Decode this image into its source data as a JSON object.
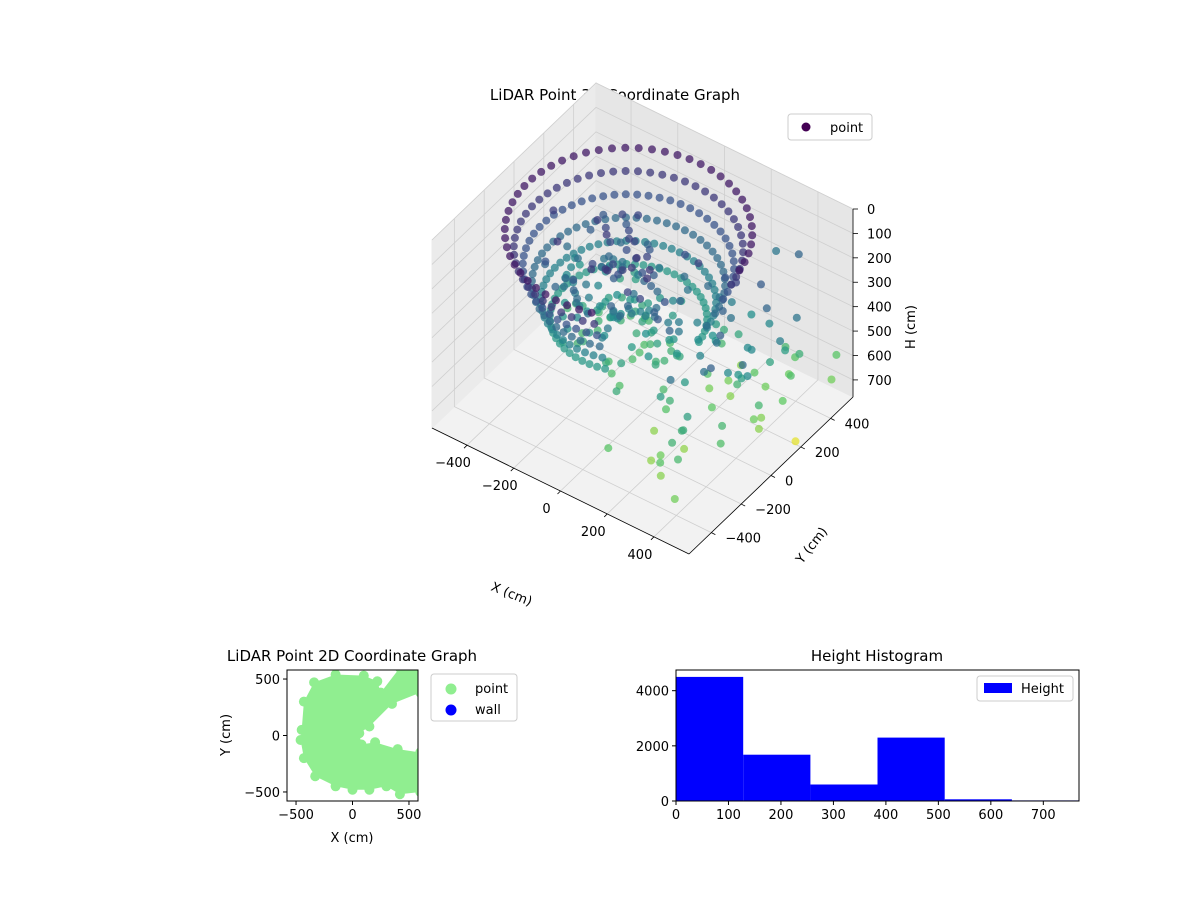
{
  "chart_data": [
    {
      "type": "scatter",
      "projection": "3d",
      "title": "LiDAR Point 3D Coordinate Graph",
      "xlabel": "X (cm)",
      "ylabel": "Y (cm)",
      "zlabel": "H (cm)",
      "x_ticks": [
        -400,
        -200,
        0,
        200,
        400
      ],
      "y_ticks": [
        -400,
        -200,
        0,
        200,
        400
      ],
      "z_ticks": [
        0,
        100,
        200,
        300,
        400,
        500,
        600,
        700
      ],
      "xlim": [
        -550,
        550
      ],
      "ylim": [
        -550,
        550
      ],
      "zlim": [
        0,
        770
      ],
      "z_inverted": true,
      "colormap": "viridis",
      "legend": {
        "entries": [
          "point"
        ],
        "position": "upper-right"
      },
      "grid": true,
      "series": [
        {
          "name": "point",
          "note_points": [
            {
              "x": 530,
              "y": 470,
              "h": 560
            },
            {
              "x": 560,
              "y": 390,
              "h": 600
            },
            {
              "x": 480,
              "y": 300,
              "h": 480
            },
            {
              "x": 540,
              "y": 180,
              "h": 740
            },
            {
              "x": 420,
              "y": -420,
              "h": 520
            },
            {
              "x": 470,
              "y": -520,
              "h": 600
            },
            {
              "x": 350,
              "y": -430,
              "h": 560
            },
            {
              "x": 260,
              "y": -350,
              "h": 640
            },
            {
              "x": 160,
              "y": -480,
              "h": 560
            },
            {
              "x": 80,
              "y": -300,
              "h": 470
            },
            {
              "x": 300,
              "y": 260,
              "h": 380
            },
            {
              "x": 200,
              "y": 180,
              "h": 420
            },
            {
              "x": 120,
              "y": -100,
              "h": 460
            },
            {
              "x": 380,
              "y": 40,
              "h": 500
            },
            {
              "x": 450,
              "y": 150,
              "h": 440
            },
            {
              "x": 240,
              "y": 520,
              "h": 300
            },
            {
              "x": 350,
              "y": 500,
              "h": 250
            }
          ]
        }
      ]
    },
    {
      "type": "scatter",
      "title": "LiDAR Point 2D Coordinate Graph",
      "xlabel": "X (cm)",
      "ylabel": "Y (cm)",
      "x_ticks": [
        -500,
        0,
        500
      ],
      "y_ticks": [
        -500,
        0,
        500
      ],
      "xlim": [
        -580,
        580
      ],
      "ylim": [
        -580,
        580
      ],
      "legend": {
        "entries": [
          "point",
          "wall"
        ],
        "position": "outside-right"
      },
      "series": [
        {
          "name": "point",
          "color": "#90ee90"
        },
        {
          "name": "wall",
          "color": "#0000ff",
          "values": []
        }
      ]
    },
    {
      "type": "bar",
      "title": "Height Histogram",
      "xlabel": "",
      "ylabel": "",
      "bin_edges": [
        0,
        128,
        256,
        384,
        512,
        640,
        768
      ],
      "values": [
        4500,
        1680,
        600,
        2300,
        60,
        20
      ],
      "x_ticks": [
        0,
        100,
        200,
        300,
        400,
        500,
        600,
        700
      ],
      "y_ticks": [
        0,
        2000,
        4000
      ],
      "xlim": [
        0,
        768
      ],
      "ylim": [
        0,
        4750
      ],
      "color": "#0000ff",
      "legend": {
        "entries": [
          "Height"
        ],
        "position": "upper-right"
      },
      "series": [
        {
          "name": "Height"
        }
      ]
    }
  ]
}
